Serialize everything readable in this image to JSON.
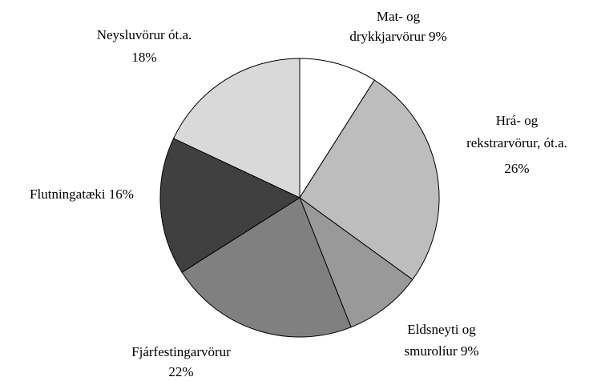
{
  "chart_data": {
    "type": "pie",
    "categories": [
      [
        "Mat- og",
        "drykkjarvörur"
      ],
      [
        "Hrá- og",
        "rekstrarvörur, ót.a."
      ],
      [
        "Eldsneyti og",
        "smurolíur"
      ],
      [
        "Fjárfestingarvörur"
      ],
      [
        "Flutningatæki"
      ],
      [
        "Neysluvörur ót.a."
      ]
    ],
    "values": [
      9,
      26,
      9,
      22,
      16,
      18
    ],
    "value_labels": [
      "9%",
      "26%",
      "9%",
      "22%",
      "16%",
      "18%"
    ],
    "colors": [
      "#ffffff",
      "#bdbdbd",
      "#999999",
      "#808080",
      "#404040",
      "#d9d9d9"
    ]
  }
}
